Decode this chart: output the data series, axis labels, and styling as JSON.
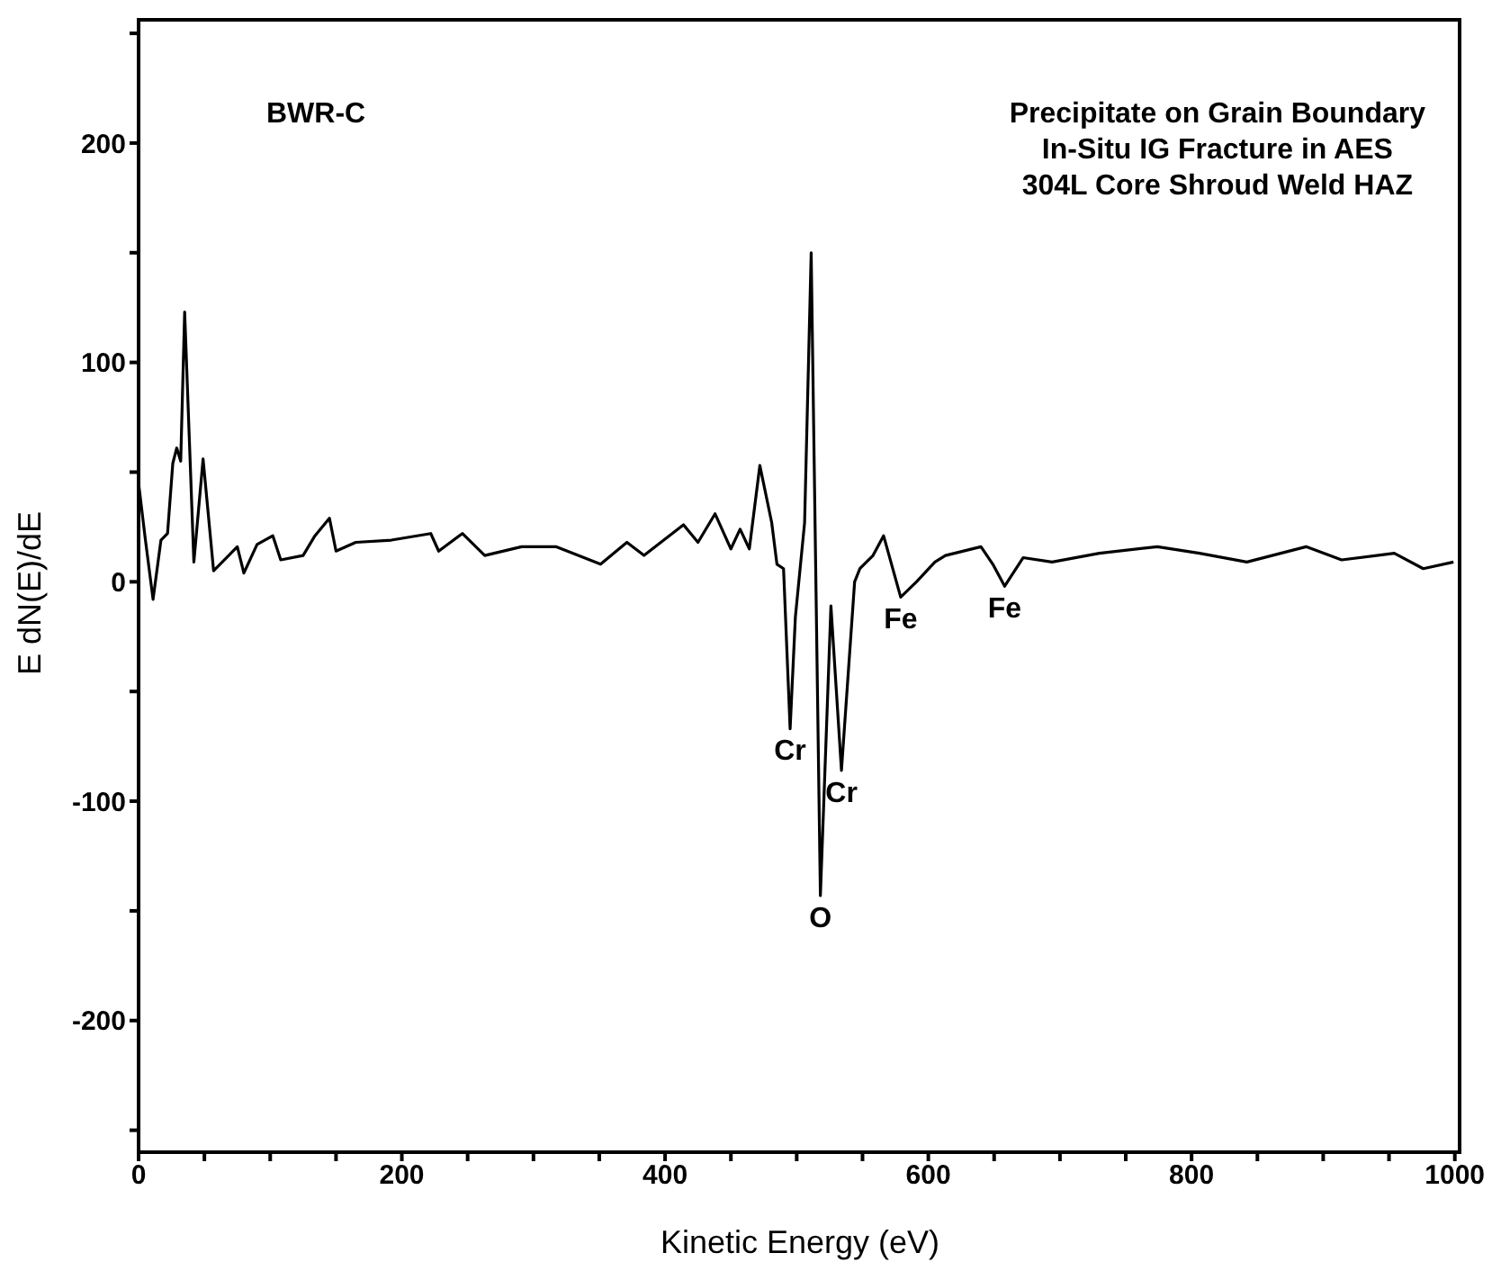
{
  "chart_data": {
    "type": "line",
    "xlabel": "Kinetic Energy (eV)",
    "ylabel": "E dN(E)/dE",
    "x": [
      0,
      5,
      11,
      17,
      22,
      26,
      29,
      32,
      35,
      42,
      49,
      57,
      75,
      80,
      90,
      102,
      108,
      125,
      134,
      145,
      150,
      165,
      192,
      222,
      228,
      246,
      263,
      291,
      317,
      351,
      371,
      384,
      414,
      425,
      438,
      450,
      457,
      464,
      472,
      481,
      485,
      490,
      495,
      499,
      506,
      511,
      518,
      526,
      534,
      544,
      548,
      558,
      566,
      579,
      591,
      605,
      613,
      640,
      649,
      658,
      672,
      694,
      730,
      774,
      806,
      842,
      887,
      914,
      954,
      976,
      999
    ],
    "series": [
      {
        "color": "#000000",
        "values": [
          45,
          20,
          -8,
          19,
          22,
          54,
          61,
          55,
          123,
          9,
          56,
          5,
          16,
          4,
          17,
          21,
          10,
          12,
          21,
          29,
          14,
          18,
          19,
          22,
          14,
          22,
          12,
          16,
          16,
          8,
          18,
          12,
          26,
          18,
          31,
          15,
          24,
          15,
          53,
          27,
          8,
          6,
          -67,
          -16,
          27,
          150,
          -143,
          -11,
          -86,
          0,
          6,
          12,
          21,
          -7,
          0,
          9,
          12,
          16,
          8,
          -2,
          11,
          9,
          13,
          16,
          13,
          9,
          16,
          10,
          13,
          6,
          9
        ]
      }
    ],
    "xlim": [
      0,
      1005
    ],
    "xticks": [
      0,
      {
        "value": 50,
        "label": null
      },
      {
        "value": 100,
        "label": null
      },
      {
        "value": 150,
        "label": null
      },
      200,
      {
        "value": 250,
        "label": null
      },
      {
        "value": 300,
        "label": null
      },
      {
        "value": 350,
        "label": null
      },
      400,
      {
        "value": 450,
        "label": null
      },
      {
        "value": 500,
        "label": null
      },
      {
        "value": 550,
        "label": null
      },
      600,
      {
        "value": 650,
        "label": null
      },
      {
        "value": 700,
        "label": null
      },
      {
        "value": 750,
        "label": null
      },
      800,
      {
        "value": 850,
        "label": null
      },
      {
        "value": 900,
        "label": null
      },
      {
        "value": 950,
        "label": null
      },
      1000
    ],
    "ylim": [
      -260,
      257
    ],
    "yticks": [
      {
        "value": -250,
        "label": null
      },
      -200,
      {
        "value": -150,
        "label": null
      },
      -100,
      {
        "value": -50,
        "label": null
      },
      0,
      {
        "value": 50,
        "label": null
      },
      100,
      {
        "value": 150,
        "label": null
      },
      200,
      {
        "value": 250,
        "label": null
      }
    ],
    "grid": false,
    "legend": false,
    "marker": "none",
    "line_style": "solid",
    "annotations": [
      "BWR-C",
      "Precipitate on Grain Boundary\nIn-Situ IG Fracture in AES\n304L Core Shroud Weld HAZ",
      {
        "text": "Cr",
        "x": 495,
        "y": -67
      },
      {
        "text": "O",
        "x": 518,
        "y": -143
      },
      {
        "text": "Cr",
        "x": 534,
        "y": -86
      },
      {
        "text": "Fe",
        "x": 579,
        "y": -7
      },
      {
        "text": "Fe",
        "x": 658,
        "y": -2
      }
    ]
  }
}
